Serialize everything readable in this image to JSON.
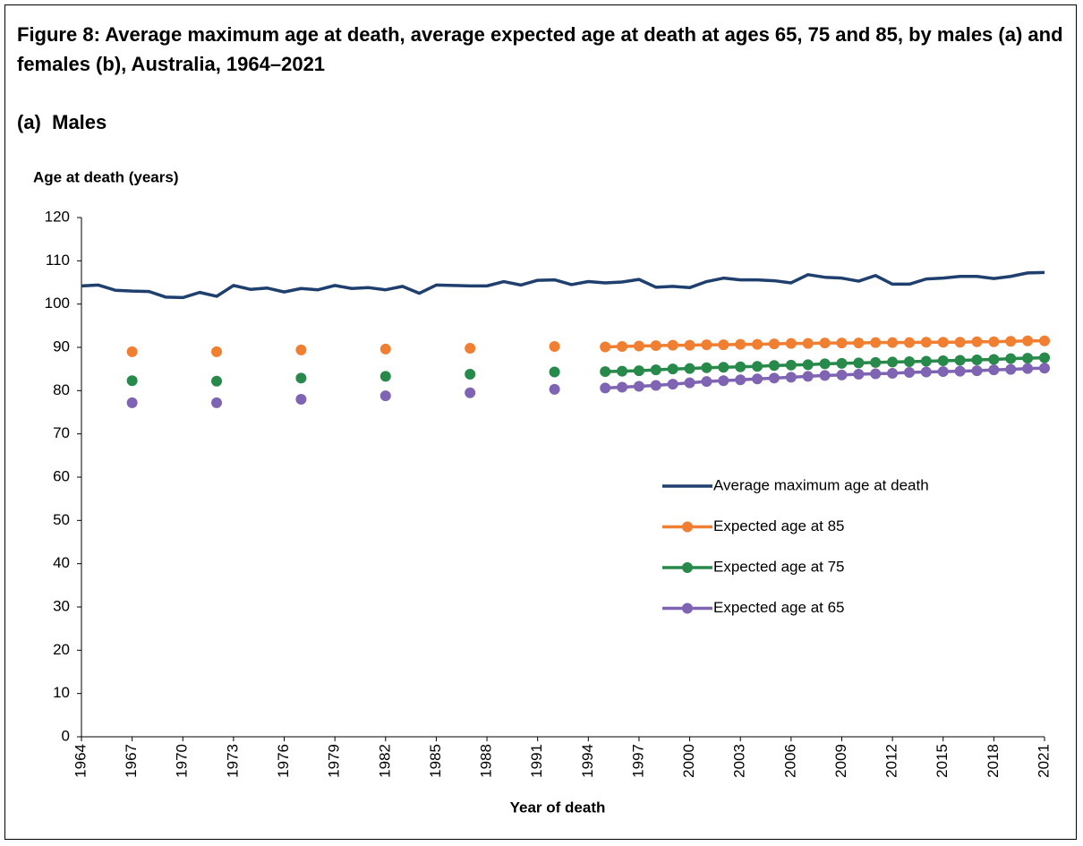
{
  "chart_data": {
    "type": "line",
    "title": "Figure 8: Average maximum age at death, average expected age at death at ages 65, 75 and 85, by males (a) and females (b), Australia, 1964–2021",
    "subtitle": "(a)  Males",
    "ylabel": "Age at death (years)",
    "xlabel": "Year of death",
    "x": [
      1964,
      1965,
      1966,
      1967,
      1968,
      1969,
      1970,
      1971,
      1972,
      1973,
      1974,
      1975,
      1976,
      1977,
      1978,
      1979,
      1980,
      1981,
      1982,
      1983,
      1984,
      1985,
      1986,
      1987,
      1988,
      1989,
      1990,
      1991,
      1992,
      1993,
      1994,
      1995,
      1996,
      1997,
      1998,
      1999,
      2000,
      2001,
      2002,
      2003,
      2004,
      2005,
      2006,
      2007,
      2008,
      2009,
      2010,
      2011,
      2012,
      2013,
      2014,
      2015,
      2016,
      2017,
      2018,
      2019,
      2020,
      2021
    ],
    "xlim": [
      1964,
      2021
    ],
    "xticks": [
      1964,
      1967,
      1970,
      1973,
      1976,
      1979,
      1982,
      1985,
      1988,
      1991,
      1994,
      1997,
      2000,
      2003,
      2006,
      2009,
      2012,
      2015,
      2018,
      2021
    ],
    "ylim": [
      0,
      120
    ],
    "yticks": [
      0,
      10,
      20,
      30,
      40,
      50,
      60,
      70,
      80,
      90,
      100,
      110,
      120
    ],
    "legend": "right",
    "series": [
      {
        "name": "Average maximum age at death",
        "color": "#1f3f6e",
        "markers": false,
        "values": [
          104.2,
          104.4,
          103.2,
          103.0,
          102.9,
          101.6,
          101.5,
          102.7,
          101.8,
          104.3,
          103.4,
          103.7,
          102.8,
          103.6,
          103.3,
          104.3,
          103.6,
          103.8,
          103.3,
          104.1,
          102.5,
          104.4,
          104.3,
          104.2,
          104.2,
          105.2,
          104.4,
          105.5,
          105.6,
          104.5,
          105.2,
          104.9,
          105.1,
          105.7,
          103.9,
          104.1,
          103.8,
          105.2,
          106.0,
          105.6,
          105.6,
          105.4,
          104.9,
          106.8,
          106.2,
          106.0,
          105.3,
          106.6,
          104.6,
          104.6,
          105.8,
          106.0,
          106.4,
          106.4,
          105.9,
          106.4,
          107.2,
          107.3
        ]
      },
      {
        "name": "Expected age at 85",
        "color": "#f07f32",
        "markers": true,
        "values": [
          null,
          null,
          null,
          89.0,
          null,
          null,
          null,
          null,
          89.0,
          null,
          null,
          null,
          null,
          89.4,
          null,
          null,
          null,
          null,
          89.6,
          null,
          null,
          null,
          null,
          89.8,
          null,
          null,
          null,
          null,
          90.2,
          null,
          null,
          90.1,
          90.2,
          90.3,
          90.4,
          90.5,
          90.5,
          90.6,
          90.6,
          90.7,
          90.7,
          90.8,
          90.9,
          90.9,
          91.0,
          91.0,
          91.0,
          91.1,
          91.1,
          91.1,
          91.2,
          91.2,
          91.2,
          91.3,
          91.3,
          91.4,
          91.5,
          91.5
        ]
      },
      {
        "name": "Expected age at 75",
        "color": "#27894a",
        "markers": true,
        "values": [
          null,
          null,
          null,
          82.3,
          null,
          null,
          null,
          null,
          82.2,
          null,
          null,
          null,
          null,
          82.9,
          null,
          null,
          null,
          null,
          83.3,
          null,
          null,
          null,
          null,
          83.8,
          null,
          null,
          null,
          null,
          84.3,
          null,
          null,
          84.4,
          84.5,
          84.6,
          84.8,
          85.0,
          85.1,
          85.3,
          85.4,
          85.5,
          85.6,
          85.8,
          85.9,
          86.0,
          86.2,
          86.3,
          86.4,
          86.5,
          86.6,
          86.7,
          86.8,
          86.9,
          87.0,
          87.1,
          87.2,
          87.4,
          87.5,
          87.6
        ]
      },
      {
        "name": "Expected age at 65",
        "color": "#8064b4",
        "markers": true,
        "values": [
          null,
          null,
          null,
          77.2,
          null,
          null,
          null,
          null,
          77.2,
          null,
          null,
          null,
          null,
          78.0,
          null,
          null,
          null,
          null,
          78.8,
          null,
          null,
          null,
          null,
          79.5,
          null,
          null,
          null,
          null,
          80.3,
          null,
          null,
          80.6,
          80.8,
          81.0,
          81.2,
          81.5,
          81.8,
          82.1,
          82.3,
          82.5,
          82.7,
          82.9,
          83.1,
          83.3,
          83.5,
          83.6,
          83.8,
          83.9,
          84.0,
          84.2,
          84.3,
          84.4,
          84.5,
          84.6,
          84.8,
          84.9,
          85.1,
          85.2
        ]
      }
    ]
  }
}
